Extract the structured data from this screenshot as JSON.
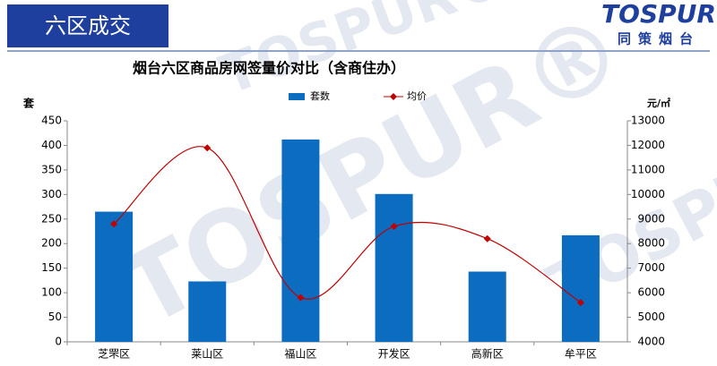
{
  "header": {
    "title": "六区成交",
    "logo": "TOSPUR",
    "logo_sub": "同策烟台",
    "watermark": "TOSPUR®"
  },
  "chart_data": {
    "type": "bar-line",
    "title": "烟台六区商品房网签量价对比（含商住办）",
    "y_label": "套",
    "y2_label": "元/㎡",
    "categories": [
      "芝罘区",
      "莱山区",
      "福山区",
      "开发区",
      "高新区",
      "牟平区"
    ],
    "series": [
      {
        "name": "套数",
        "type": "bar",
        "color": "#0b6cc0",
        "values": [
          265,
          123,
          412,
          301,
          143,
          217
        ]
      },
      {
        "name": "均价",
        "type": "line",
        "axis": "y2",
        "color": "#c00000",
        "values": [
          8800,
          11900,
          5800,
          8700,
          8200,
          5600
        ]
      }
    ],
    "ylim": [
      0,
      450
    ],
    "yticks": [
      0,
      50,
      100,
      150,
      200,
      250,
      300,
      350,
      400,
      450
    ],
    "y2lim": [
      4000,
      13000
    ],
    "y2ticks": [
      4000,
      5000,
      6000,
      7000,
      8000,
      9000,
      10000,
      11000,
      12000,
      13000
    ],
    "legend": "top"
  }
}
